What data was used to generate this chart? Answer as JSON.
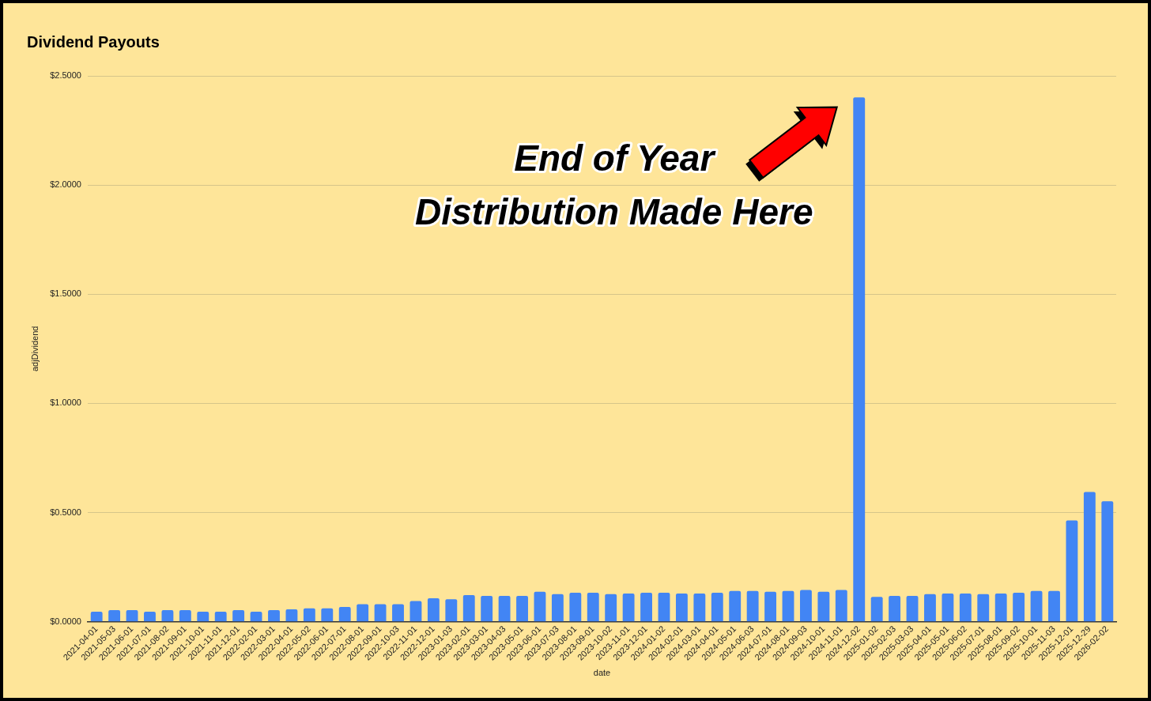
{
  "chart_data": {
    "type": "bar",
    "title": "Dividend Payouts",
    "xlabel": "date",
    "ylabel": "adjDividend",
    "categories": [
      "2021-04-01",
      "2021-05-03",
      "2021-06-01",
      "2021-07-01",
      "2021-08-02",
      "2021-09-01",
      "2021-10-01",
      "2021-11-01",
      "2021-12-01",
      "2022-02-01",
      "2022-03-01",
      "2022-04-01",
      "2022-05-02",
      "2022-06-01",
      "2022-07-01",
      "2022-08-01",
      "2022-09-01",
      "2022-10-03",
      "2022-11-01",
      "2022-12-01",
      "2023-01-03",
      "2023-02-01",
      "2023-03-01",
      "2023-04-03",
      "2023-05-01",
      "2023-06-01",
      "2023-07-03",
      "2023-08-01",
      "2023-09-01",
      "2023-10-02",
      "2023-11-01",
      "2023-12-01",
      "2024-01-02",
      "2024-02-01",
      "2024-03-01",
      "2024-04-01",
      "2024-05-01",
      "2024-06-03",
      "2024-07-01",
      "2024-08-01",
      "2024-09-03",
      "2024-10-01",
      "2024-11-01",
      "2024-12-02",
      "2025-01-02",
      "2025-02-03",
      "2025-03-03",
      "2025-04-01",
      "2025-05-01",
      "2025-06-02",
      "2025-07-01",
      "2025-08-01",
      "2025-09-02",
      "2025-10-01",
      "2025-11-03",
      "2025-12-01",
      "2025-12-29",
      "2026-02-02"
    ],
    "values": [
      0.046,
      0.053,
      0.053,
      0.046,
      0.053,
      0.053,
      0.046,
      0.046,
      0.053,
      0.046,
      0.053,
      0.057,
      0.061,
      0.061,
      0.068,
      0.08,
      0.08,
      0.08,
      0.095,
      0.107,
      0.103,
      0.122,
      0.118,
      0.118,
      0.118,
      0.137,
      0.126,
      0.133,
      0.133,
      0.126,
      0.129,
      0.133,
      0.133,
      0.129,
      0.129,
      0.133,
      0.141,
      0.141,
      0.137,
      0.141,
      0.145,
      0.137,
      0.145,
      2.401,
      0.114,
      0.118,
      0.118,
      0.126,
      0.129,
      0.129,
      0.126,
      0.129,
      0.133,
      0.141,
      0.141,
      0.464,
      0.594,
      0.552
    ],
    "color": "#4285f4",
    "ylim": [
      0,
      2.5
    ],
    "yticks": [
      {
        "value": 0,
        "label": "$0.0000"
      },
      {
        "value": 0.5,
        "label": "$0.5000"
      },
      {
        "value": 1,
        "label": "$1.0000"
      },
      {
        "value": 1.5,
        "label": "$1.5000"
      },
      {
        "value": 2,
        "label": "$2.0000"
      },
      {
        "value": 2.5,
        "label": "$2.5000"
      }
    ],
    "grid": "y",
    "annotations": [
      {
        "text": "End of Year\nDistribution Made Here",
        "x": "2024-12-02",
        "y": 2.4
      }
    ]
  }
}
